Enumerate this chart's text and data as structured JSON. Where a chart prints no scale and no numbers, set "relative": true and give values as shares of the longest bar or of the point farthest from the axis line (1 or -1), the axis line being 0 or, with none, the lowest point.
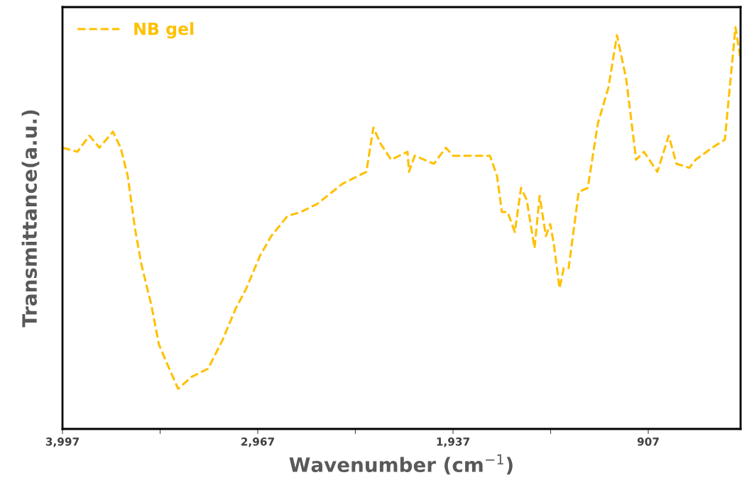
{
  "chart_data": {
    "type": "line",
    "xlabel": "Wavenumber (cm$^{−1}$)",
    "ylabel": "Transmittance(a.u.)",
    "relative": true,
    "tick_labels": "x",
    "legend": "top left",
    "line_style": "dashed",
    "grid": false,
    "xlim": [
      3997,
      420
    ],
    "xticks": [
      {
        "value": 3997,
        "label": "3,997"
      },
      {
        "value": 3482,
        "label": null
      },
      {
        "value": 2967,
        "label": "2,967"
      },
      {
        "value": 2452,
        "label": null
      },
      {
        "value": 1937,
        "label": "1,937"
      },
      {
        "value": 1422,
        "label": null
      },
      {
        "value": 907,
        "label": "907"
      }
    ],
    "x": [
      3997,
      3918,
      3855,
      3802,
      3731,
      3690,
      3653,
      3615,
      3581,
      3529,
      3488,
      3443,
      3387,
      3315,
      3229,
      3154,
      3083,
      3027,
      2956,
      2896,
      2810,
      2739,
      2653,
      2521,
      2394,
      2357,
      2319,
      2263,
      2177,
      2169,
      2139,
      2038,
      1975,
      1937,
      1836,
      1742,
      1705,
      1679,
      1649,
      1611,
      1578,
      1548,
      1507,
      1480,
      1447,
      1424,
      1405,
      1375,
      1353,
      1327,
      1274,
      1226,
      1173,
      1117,
      1072,
      1023,
      971,
      930,
      859,
      799,
      758,
      690,
      657,
      570,
      503,
      447,
      420
    ],
    "series": [
      {
        "name": "NB gel",
        "color": "#ffc000",
        "values": [
          0.7,
          0.69,
          0.73,
          0.7,
          0.74,
          0.7,
          0.63,
          0.5,
          0.41,
          0.31,
          0.21,
          0.16,
          0.1,
          0.13,
          0.15,
          0.22,
          0.3,
          0.35,
          0.43,
          0.48,
          0.53,
          0.54,
          0.56,
          0.61,
          0.64,
          0.75,
          0.71,
          0.67,
          0.69,
          0.64,
          0.68,
          0.66,
          0.7,
          0.68,
          0.68,
          0.68,
          0.63,
          0.54,
          0.54,
          0.49,
          0.6,
          0.57,
          0.45,
          0.58,
          0.48,
          0.51,
          0.46,
          0.35,
          0.4,
          0.4,
          0.59,
          0.6,
          0.76,
          0.85,
          0.98,
          0.87,
          0.67,
          0.69,
          0.64,
          0.73,
          0.66,
          0.65,
          0.67,
          0.7,
          0.72,
          1.0,
          0.92
        ]
      }
    ]
  }
}
